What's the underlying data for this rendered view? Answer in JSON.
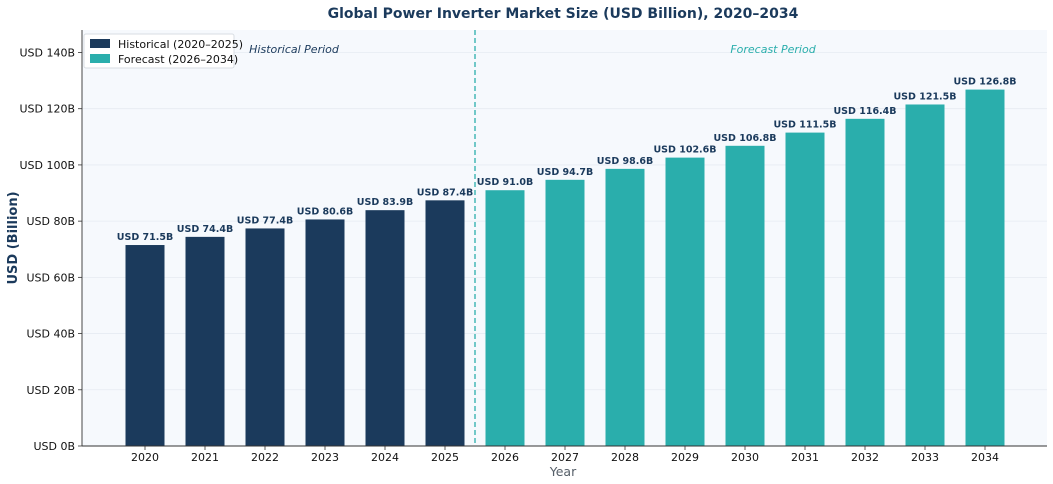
{
  "chart_data": {
    "type": "bar",
    "title": "Global Power Inverter Market Size (USD Billion), 2020–2034",
    "xlabel": "Year",
    "ylabel": "USD (Billion)",
    "ylim": [
      0,
      148
    ],
    "yticks": [
      0,
      20,
      40,
      60,
      80,
      100,
      120,
      140
    ],
    "ytick_labels": [
      "USD 0B",
      "USD 20B",
      "USD 40B",
      "USD 60B",
      "USD 80B",
      "USD 100B",
      "USD 120B",
      "USD 140B"
    ],
    "categories": [
      "2020",
      "2021",
      "2022",
      "2023",
      "2024",
      "2025",
      "2026",
      "2027",
      "2028",
      "2029",
      "2030",
      "2031",
      "2032",
      "2033",
      "2034"
    ],
    "values": [
      71.5,
      74.4,
      77.4,
      80.6,
      83.9,
      87.4,
      91.0,
      94.7,
      98.6,
      102.6,
      106.8,
      111.5,
      116.4,
      121.5,
      126.8
    ],
    "data_labels": [
      "USD 71.5B",
      "USD 74.4B",
      "USD 77.4B",
      "USD 80.6B",
      "USD 83.9B",
      "USD 87.4B",
      "USD 91.0B",
      "USD 94.7B",
      "USD 98.6B",
      "USD 102.6B",
      "USD 106.8B",
      "USD 111.5B",
      "USD 116.4B",
      "USD 121.5B",
      "USD 126.8B"
    ],
    "series": [
      {
        "name": "Historical (2020–2025)",
        "color": "#1b3a5c",
        "categories": [
          "2020",
          "2021",
          "2022",
          "2023",
          "2024",
          "2025"
        ]
      },
      {
        "name": "Forecast (2026–2034)",
        "color": "#2aaeac",
        "categories": [
          "2026",
          "2027",
          "2028",
          "2029",
          "2030",
          "2031",
          "2032",
          "2033",
          "2034"
        ]
      }
    ],
    "annotations": [
      {
        "text": "Historical Period",
        "color": "#1b3a5c"
      },
      {
        "text": "Forecast Period",
        "color": "#2aaeac"
      }
    ],
    "divider_between": [
      "2025",
      "2026"
    ],
    "legend_position": "top-left",
    "grid": "horizontal-light"
  }
}
